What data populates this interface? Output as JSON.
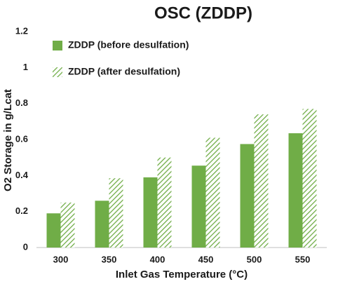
{
  "chart_data": {
    "type": "bar",
    "title": "OSC (ZDDP)",
    "x_label": "Inlet Gas Temperature (°C)",
    "y_label": "O2 Storage in g/Lcat",
    "categories": [
      "300",
      "350",
      "400",
      "450",
      "500",
      "550"
    ],
    "series": [
      {
        "name": "ZDDP (before desulfation)",
        "color": "#70ad47",
        "pattern": "solid",
        "values": [
          0.19,
          0.26,
          0.39,
          0.455,
          0.575,
          0.635
        ]
      },
      {
        "name": "ZDDP (after desulfation)",
        "color": "#70ad47",
        "pattern": "hatched",
        "values": [
          0.25,
          0.385,
          0.5,
          0.61,
          0.74,
          0.77
        ]
      }
    ],
    "ylim": [
      0,
      1.2
    ],
    "yticks": [
      0,
      0.2,
      0.4,
      0.6,
      0.8,
      1,
      1.2
    ],
    "legend": "upper left"
  }
}
